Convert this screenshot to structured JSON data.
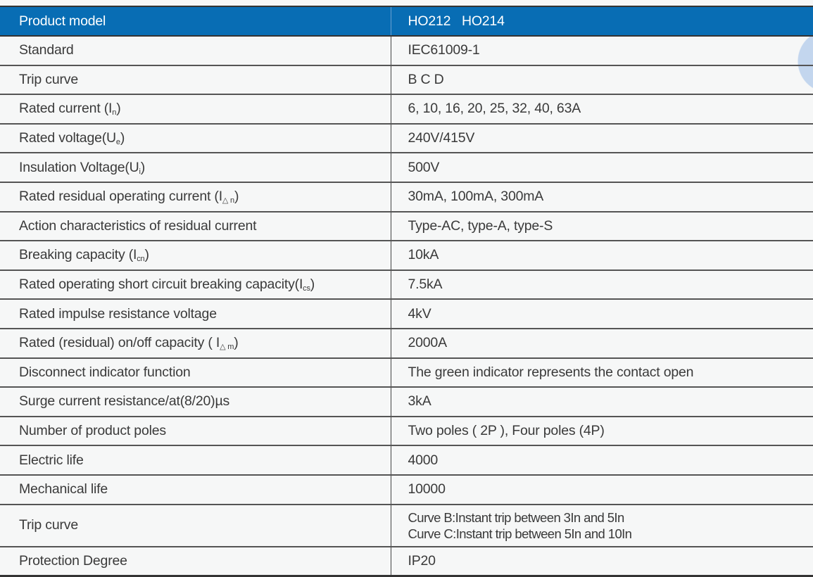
{
  "header": {
    "label": "Product model",
    "value": "HO212   HO214"
  },
  "rows": [
    {
      "label": "Standard",
      "sub": "",
      "close": "",
      "value": "IEC61009-1"
    },
    {
      "label": "Trip curve",
      "sub": "",
      "close": "",
      "value": "B C D"
    },
    {
      "label": "Rated current (I",
      "sub": "n",
      "close": ")",
      "value": "6, 10, 16, 20, 25, 32, 40, 63A"
    },
    {
      "label": "Rated voltage(U",
      "sub": "e",
      "close": ")",
      "value": "240V/415V"
    },
    {
      "label": "Insulation Voltage(U",
      "sub": "i",
      "close": ")",
      "value": "500V"
    },
    {
      "label": "Rated residual operating current (I",
      "sub": "△ n",
      "close": ")",
      "value": "30mA, 100mA, 300mA"
    },
    {
      "label": "Action characteristics of residual current",
      "sub": "",
      "close": "",
      "value": "Type-AC, type-A, type-S"
    },
    {
      "label": "Breaking capacity (I",
      "sub": "cn",
      "close": ")",
      "value": "10kA"
    },
    {
      "label": "Rated operating short circuit breaking capacity(I",
      "sub": "cs",
      "close": ")",
      "value": "7.5kA"
    },
    {
      "label": "Rated impulse resistance voltage",
      "sub": "",
      "close": "",
      "value": "4kV"
    },
    {
      "label": "Rated (residual) on/off capacity ( I",
      "sub": "△ m",
      "close": ")",
      "value": "2000A"
    },
    {
      "label": "Disconnect indicator function",
      "sub": "",
      "close": "",
      "value": "The green indicator represents the contact open"
    },
    {
      "label": "Surge current resistance/at(8/20)µs",
      "sub": "",
      "close": "",
      "value": "3kA"
    },
    {
      "label": "Number of product poles",
      "sub": "",
      "close": "",
      "value": "Two poles ( 2P ), Four poles (4P)"
    },
    {
      "label": "Electric life",
      "sub": "",
      "close": "",
      "value": "4000"
    },
    {
      "label": "Mechanical life",
      "sub": "",
      "close": "",
      "value": "10000"
    }
  ],
  "trip_curve_detail": {
    "label": "Trip curve",
    "line1": "Curve B:Instant trip between 3In and 5In",
    "line2": "Curve C:Instant trip between 5In and 10In"
  },
  "protection": {
    "label": "Protection Degree",
    "value": "IP20"
  },
  "colors": {
    "header_bg": "#086db4",
    "header_text": "#ffffff",
    "body_bg": "#f6f7f7"
  }
}
